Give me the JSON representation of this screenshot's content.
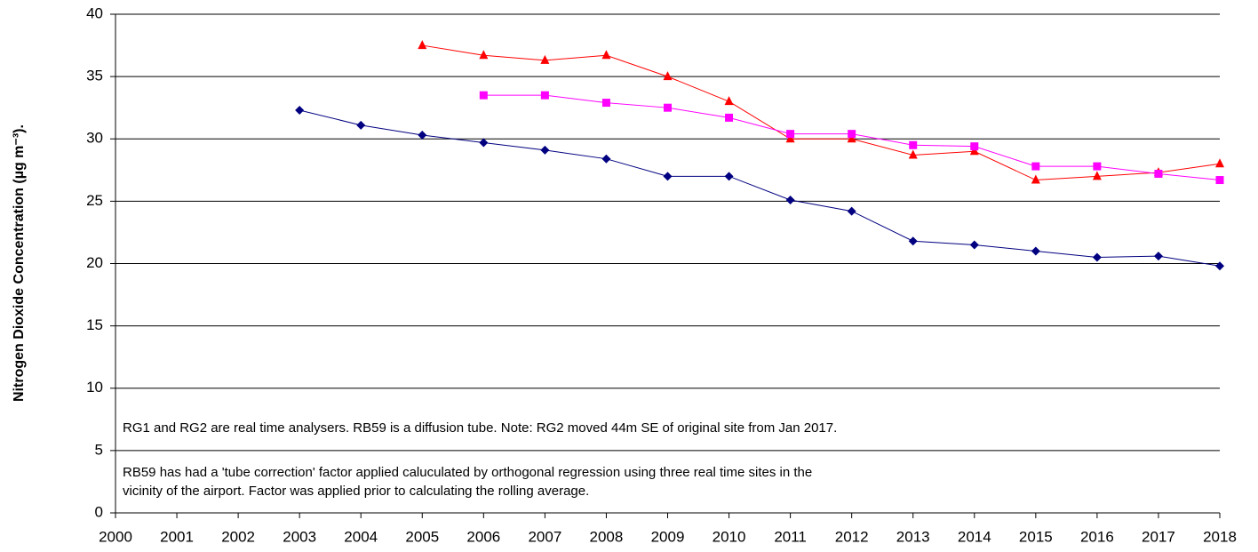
{
  "chart_data": {
    "type": "line",
    "y_label": "Nitrogen Dioxide Concentration (µg m⁻³).",
    "x": [
      2000,
      2001,
      2002,
      2003,
      2004,
      2005,
      2006,
      2007,
      2008,
      2009,
      2010,
      2011,
      2012,
      2013,
      2014,
      2015,
      2016,
      2017,
      2018
    ],
    "xlim": [
      2000,
      2018
    ],
    "xticks": [
      2000,
      2001,
      2002,
      2003,
      2004,
      2005,
      2006,
      2007,
      2008,
      2009,
      2010,
      2011,
      2012,
      2013,
      2014,
      2015,
      2016,
      2017,
      2018
    ],
    "ylim": [
      0,
      40
    ],
    "yticks": [
      0,
      5,
      10,
      15,
      20,
      25,
      30,
      35,
      40
    ],
    "grid": true,
    "series": [
      {
        "color": "#000080",
        "marker": "diamond",
        "values": [
          null,
          null,
          null,
          32.3,
          31.1,
          30.3,
          29.7,
          29.1,
          28.4,
          27.0,
          27.0,
          25.1,
          24.2,
          21.8,
          21.5,
          21.0,
          20.5,
          20.6,
          19.8
        ]
      },
      {
        "color": "#ff0000",
        "marker": "triangle",
        "values": [
          null,
          null,
          null,
          null,
          null,
          37.5,
          36.7,
          36.3,
          36.7,
          35.0,
          33.0,
          30.0,
          30.0,
          28.7,
          29.0,
          26.7,
          27.0,
          27.3,
          28.0
        ]
      },
      {
        "color": "#ff00ff",
        "marker": "square",
        "values": [
          null,
          null,
          null,
          null,
          null,
          null,
          33.5,
          33.5,
          32.9,
          32.5,
          31.7,
          30.4,
          30.4,
          29.5,
          29.4,
          27.8,
          27.8,
          27.2,
          26.7
        ]
      }
    ],
    "annotations": [
      "RG1 and RG2 are real time analysers. RB59 is a diffusion tube. Note: RG2 moved 44m SE of original site from Jan 2017.",
      "RB59 has had a 'tube correction' factor applied caluculated by orthogonal regression using three real time sites in the",
      "vicinity of the airport. Factor was applied prior to calculating the rolling average."
    ]
  }
}
